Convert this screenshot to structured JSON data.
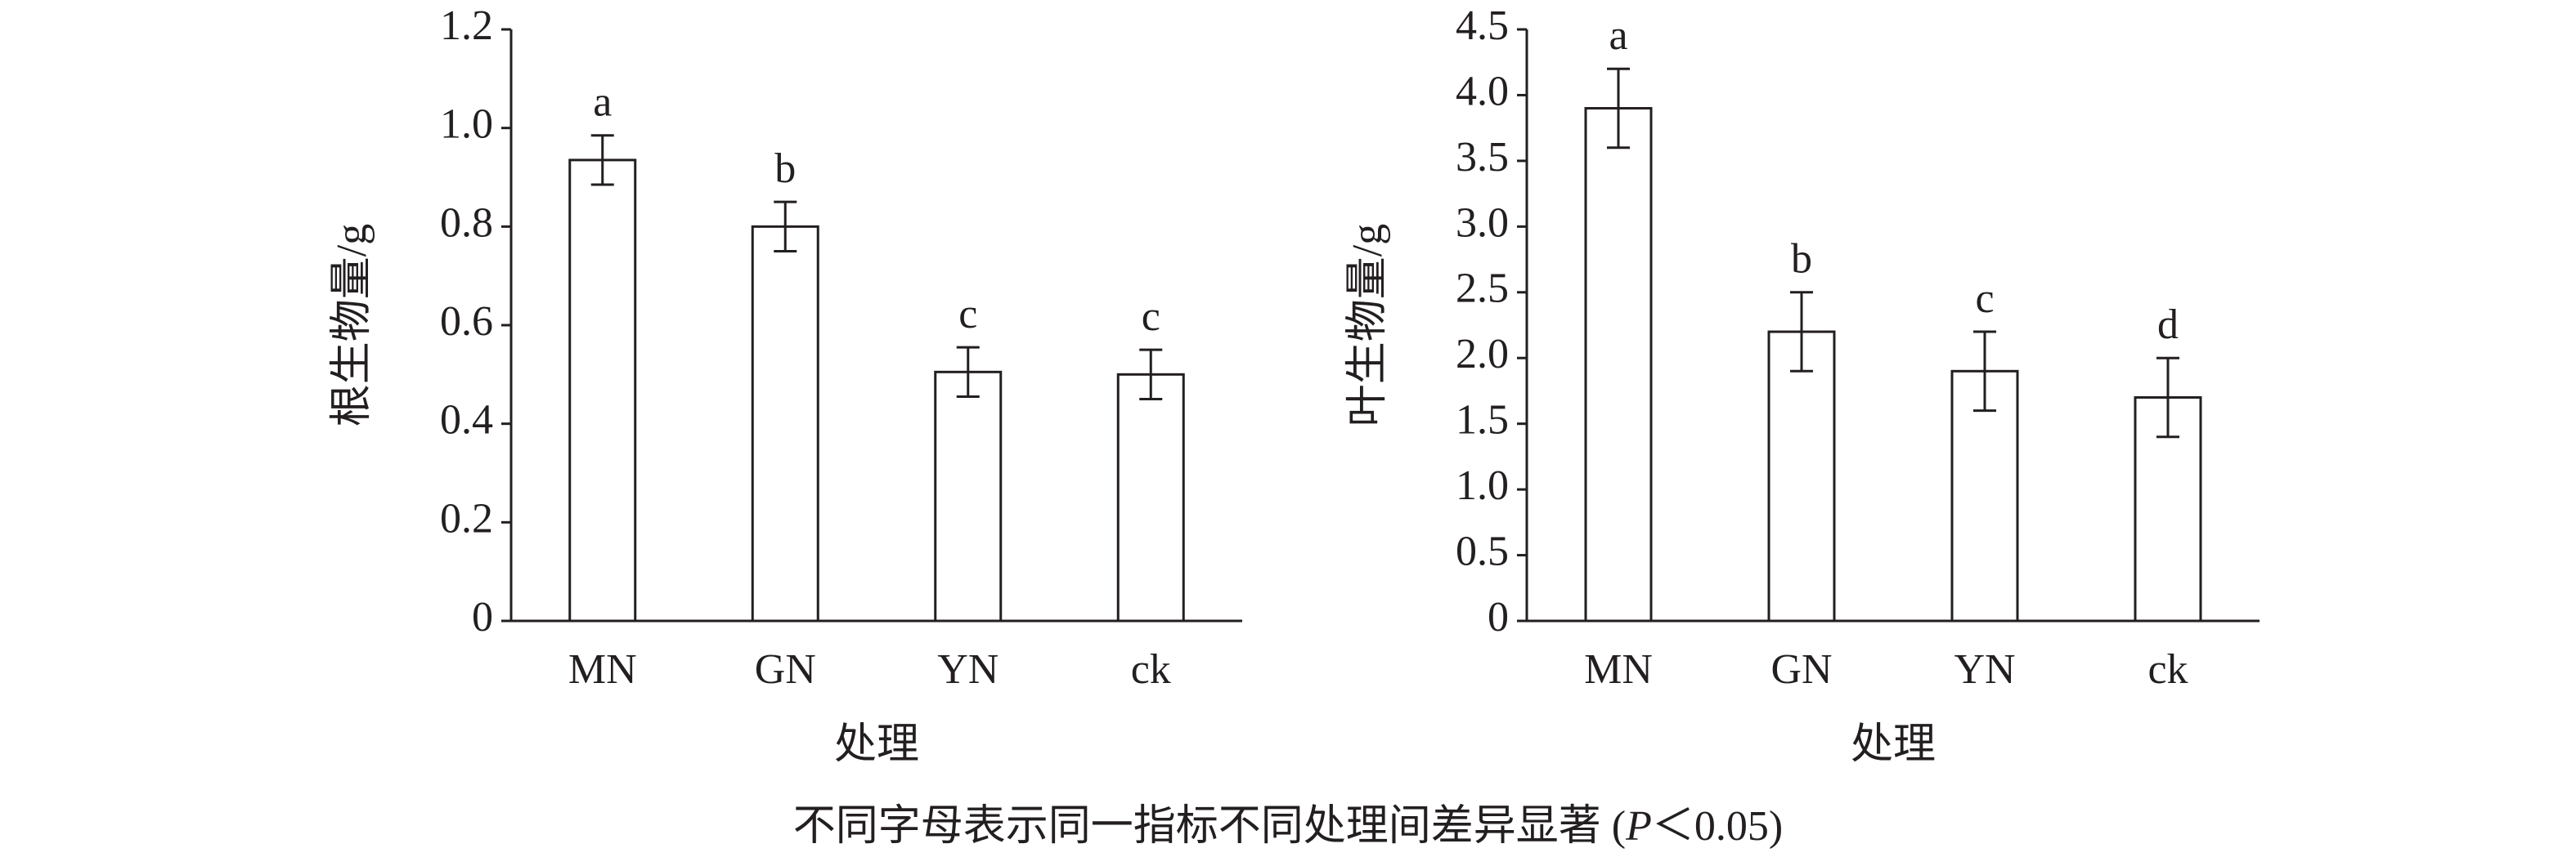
{
  "chart_data": [
    {
      "type": "bar",
      "ylabel": "根生物量/g",
      "xlabel": "处理",
      "categories": [
        "MN",
        "GN",
        "YN",
        "ck"
      ],
      "values": [
        0.935,
        0.8,
        0.505,
        0.5
      ],
      "errors": [
        0.05,
        0.05,
        0.05,
        0.05
      ],
      "letters": [
        "a",
        "b",
        "c",
        "c"
      ],
      "color": "#ffffff",
      "ylim": [
        0,
        1.2
      ],
      "yticks": [
        0,
        0.2,
        0.4,
        0.6,
        0.8,
        {
          "value": 1,
          "label": "1.0"
        },
        1.2
      ]
    },
    {
      "type": "bar",
      "ylabel": "叶生物量/g",
      "xlabel": "处理",
      "categories": [
        "MN",
        "GN",
        "YN",
        "ck"
      ],
      "values": [
        3.9,
        2.2,
        1.9,
        1.7
      ],
      "errors": [
        0.3,
        0.3,
        0.3,
        0.3
      ],
      "letters": [
        "a",
        "b",
        "c",
        "d"
      ],
      "color": "#ffffff",
      "ylim": [
        0,
        4.5
      ],
      "yticks": [
        0,
        0.5,
        {
          "value": 1,
          "label": "1.0"
        },
        1.5,
        {
          "value": 2,
          "label": "2.0"
        },
        2.5,
        {
          "value": 3,
          "label": "3.0"
        },
        3.5,
        {
          "value": 4,
          "label": "4.0"
        },
        4.5
      ]
    }
  ],
  "caption": {
    "before": "不同字母表示同一指标不同处理间差异显著 (",
    "italic": "P",
    "after": "＜0.05)"
  }
}
